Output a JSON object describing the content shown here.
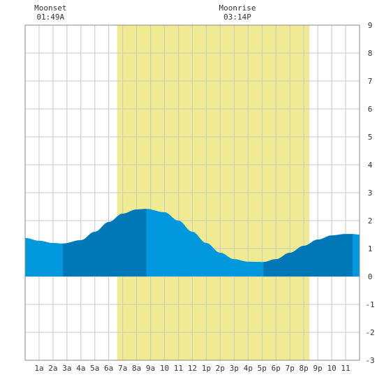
{
  "chart_data": {
    "type": "area",
    "title": "",
    "xlabel": "",
    "ylabel": "",
    "x_ticks": [
      "1a",
      "2a",
      "3a",
      "4a",
      "5a",
      "6a",
      "7a",
      "8a",
      "9a",
      "10",
      "11",
      "12",
      "1p",
      "2p",
      "3p",
      "4p",
      "5p",
      "6p",
      "7p",
      "8p",
      "9p",
      "10",
      "11"
    ],
    "x_range_hours": [
      0,
      24
    ],
    "ylim": [
      -3,
      9
    ],
    "y_ticks": [
      "-3",
      "-2",
      "-1",
      "0",
      "1",
      "2",
      "3",
      "4",
      "5",
      "6",
      "7",
      "8",
      "9"
    ],
    "grid": true,
    "daylight_hours": [
      6.6,
      20.4
    ],
    "tide_series": {
      "name": "",
      "hours": [
        0,
        1,
        2,
        2.7,
        4,
        5,
        6,
        7,
        8,
        8.7,
        10,
        11,
        12,
        13,
        14,
        15,
        16,
        17,
        17.1,
        18,
        19,
        20,
        21,
        22,
        23,
        23.5,
        24
      ],
      "values": [
        1.38,
        1.28,
        1.2,
        1.18,
        1.3,
        1.6,
        1.95,
        2.25,
        2.4,
        2.42,
        2.3,
        2.0,
        1.6,
        1.2,
        0.85,
        0.62,
        0.53,
        0.52,
        0.52,
        0.62,
        0.85,
        1.1,
        1.32,
        1.47,
        1.52,
        1.52,
        1.5
      ],
      "dark_segments": [
        [
          2.7,
          8.7
        ],
        [
          17.1,
          23.5
        ]
      ]
    },
    "annotations": [
      {
        "title": "Moonset",
        "time": "01:49A",
        "hour": 1.82
      },
      {
        "title": "Moonrise",
        "time": "03:14P",
        "hour": 15.23
      }
    ],
    "colors": {
      "daylight": "#f0ea92",
      "tide_light": "#0097dd",
      "tide_dark": "#0078b7",
      "grid": "#c8c8c8",
      "frame": "#888888"
    }
  }
}
